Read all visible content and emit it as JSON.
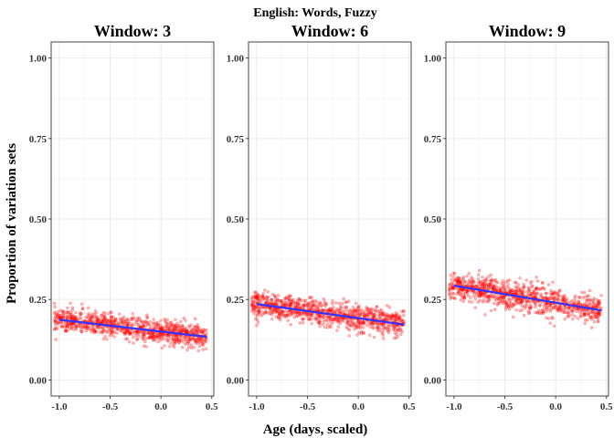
{
  "chart_data": {
    "type": "scatter",
    "title": "English: Words, Fuzzy",
    "xlabel": "Age (days, scaled)",
    "ylabel": "Proportion of variation sets",
    "xlim": [
      -1.08,
      0.52
    ],
    "ylim": [
      -0.05,
      1.05
    ],
    "x_ticks": [
      -1.0,
      -0.5,
      0.0,
      0.5
    ],
    "x_tick_labels": [
      "-1.0",
      "-0.5",
      "0.0",
      "0.5"
    ],
    "y_ticks": [
      0.0,
      0.25,
      0.5,
      0.75,
      1.0
    ],
    "y_tick_labels": [
      "0.00",
      "0.25",
      "0.50",
      "0.75",
      "1.00"
    ],
    "grid": true,
    "point_color": "#ff0000",
    "line_color": "#3333ff",
    "panels": [
      {
        "title": "Window: 3",
        "x_range": [
          -1.05,
          0.45
        ],
        "fit": [
          {
            "x": -1.0,
            "y": 0.187
          },
          {
            "x": 0.45,
            "y": 0.134
          }
        ],
        "spread": 0.018
      },
      {
        "title": "Window: 6",
        "x_range": [
          -1.05,
          0.45
        ],
        "fit": [
          {
            "x": -1.0,
            "y": 0.236
          },
          {
            "x": 0.45,
            "y": 0.172
          }
        ],
        "spread": 0.02
      },
      {
        "title": "Window: 9",
        "x_range": [
          -1.05,
          0.45
        ],
        "fit": [
          {
            "x": -1.0,
            "y": 0.293
          },
          {
            "x": 0.45,
            "y": 0.216
          }
        ],
        "spread": 0.022
      }
    ]
  }
}
